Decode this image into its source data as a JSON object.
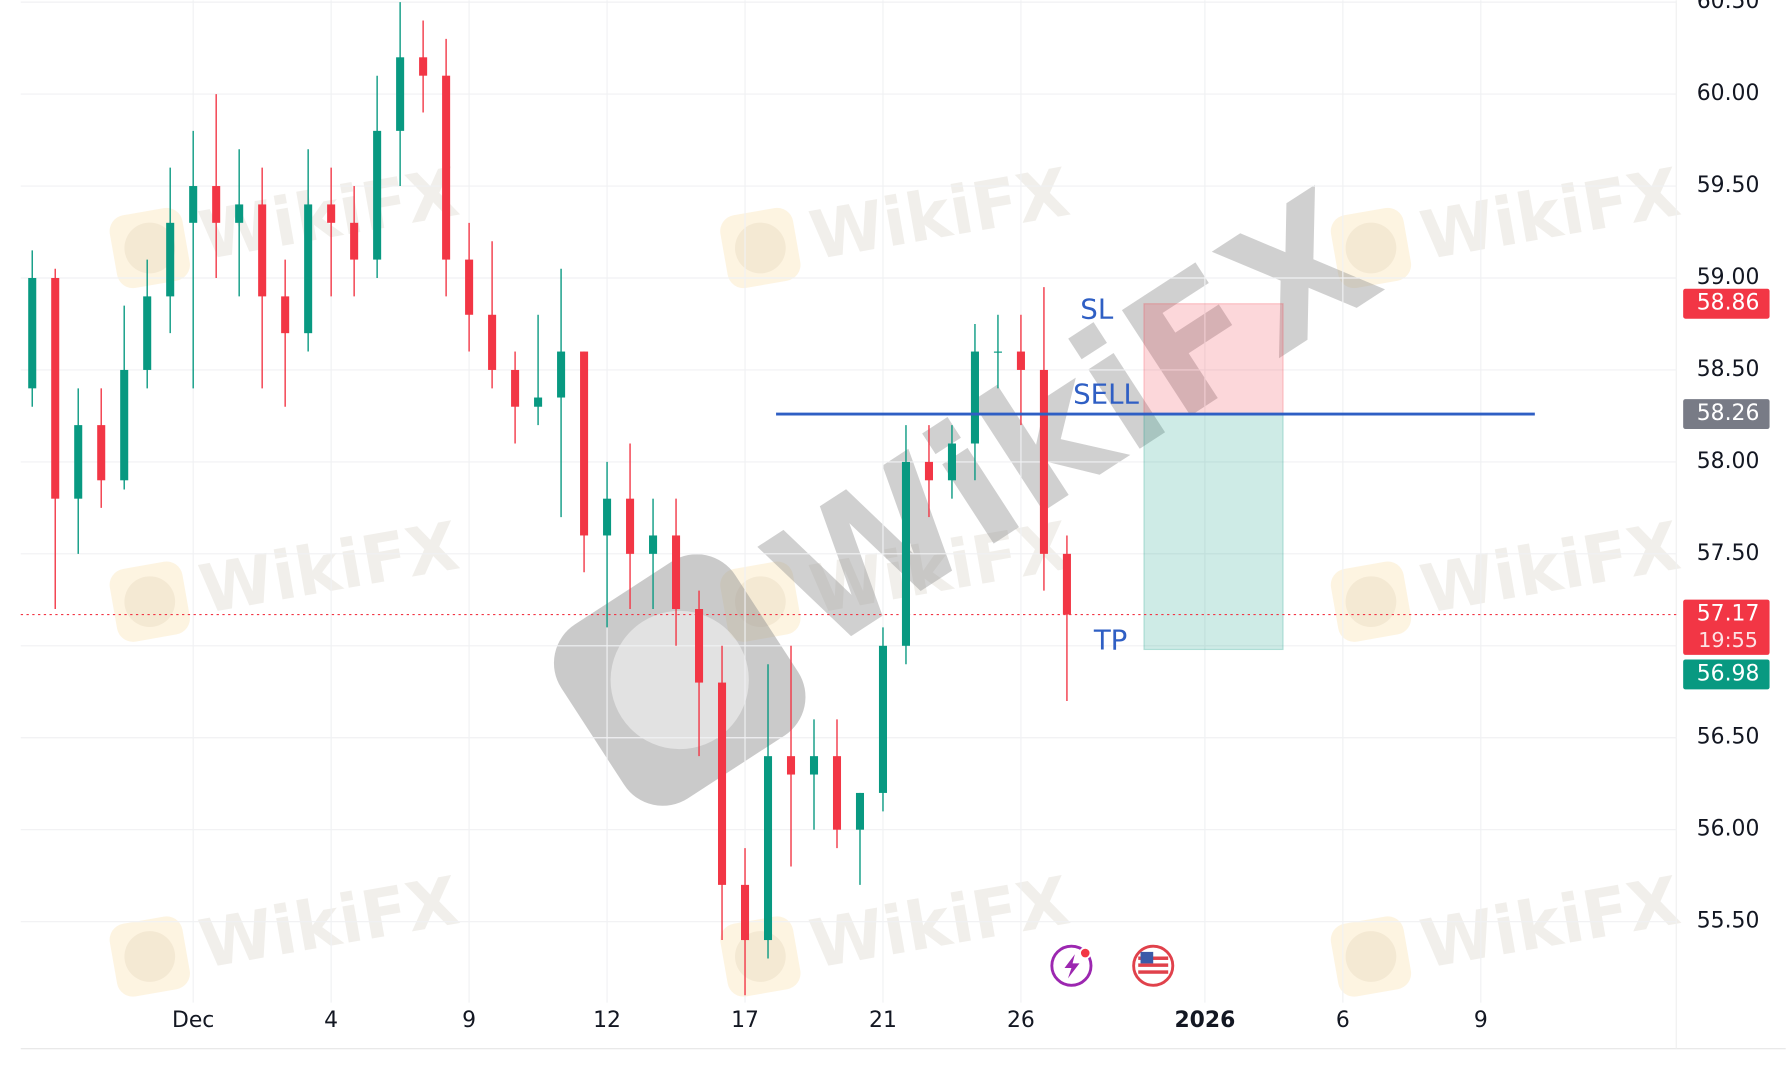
{
  "chart_data": {
    "type": "candlestick",
    "categories": [
      null,
      null,
      null,
      null,
      null,
      null,
      null,
      "Dec",
      null,
      null,
      null,
      null,
      null,
      "4",
      null,
      null,
      null,
      null,
      null,
      "9",
      null,
      null,
      null,
      null,
      null,
      "12",
      null,
      null,
      null,
      null,
      null,
      "17",
      null,
      null,
      null,
      null,
      null,
      "21",
      null,
      null,
      null,
      null,
      null,
      "26",
      null,
      null,
      null,
      null,
      null,
      null,
      null,
      "2026",
      null,
      null,
      null,
      null,
      null,
      "6",
      null,
      null,
      null,
      null,
      null,
      "9",
      null,
      null,
      null,
      null,
      null,
      null,
      null,
      null
    ],
    "open": [
      58.4,
      59.0,
      57.8,
      58.2,
      57.9,
      58.5,
      58.9,
      59.3,
      59.5,
      59.3,
      59.4,
      58.9,
      58.7,
      59.4,
      59.3,
      59.1,
      59.8,
      60.2,
      60.1,
      59.1,
      58.8,
      58.5,
      58.3,
      58.35,
      58.6,
      57.6,
      57.8,
      57.5,
      57.6,
      57.2,
      56.8,
      55.7,
      55.4,
      56.4,
      56.3,
      56.4,
      56.0,
      56.2,
      57.0,
      58.0,
      57.9,
      58.1,
      58.6,
      58.6,
      58.5,
      57.5,
      null,
      null,
      null,
      null,
      null,
      null,
      null,
      null,
      null,
      null,
      null,
      null,
      null,
      null,
      null,
      null,
      null,
      null,
      null,
      null,
      null,
      null,
      null,
      null,
      null,
      null
    ],
    "high": [
      59.15,
      59.05,
      58.4,
      58.4,
      58.85,
      59.1,
      59.6,
      59.8,
      60.0,
      59.7,
      59.6,
      59.1,
      59.7,
      59.6,
      59.5,
      60.1,
      60.5,
      60.4,
      60.3,
      59.3,
      59.2,
      58.6,
      58.8,
      59.05,
      58.6,
      58.0,
      58.1,
      57.8,
      57.8,
      57.3,
      57.0,
      55.9,
      56.9,
      57.0,
      56.6,
      56.6,
      56.2,
      57.1,
      58.2,
      58.2,
      58.2,
      58.75,
      58.8,
      58.8,
      58.95,
      57.6,
      null,
      null,
      null,
      null,
      null,
      null,
      null,
      null,
      null,
      null,
      null,
      null,
      null,
      null,
      null,
      null,
      null,
      null,
      null,
      null,
      null,
      null,
      null,
      null,
      null,
      null
    ],
    "low": [
      58.3,
      57.2,
      57.5,
      57.75,
      57.85,
      58.4,
      58.7,
      58.4,
      59.0,
      58.9,
      58.4,
      58.3,
      58.6,
      58.9,
      58.9,
      59.0,
      59.5,
      59.9,
      58.9,
      58.6,
      58.4,
      58.1,
      58.2,
      57.7,
      57.4,
      57.1,
      57.2,
      57.2,
      57.0,
      56.4,
      55.4,
      55.1,
      55.3,
      55.8,
      56.0,
      55.9,
      55.7,
      56.1,
      56.9,
      57.7,
      57.8,
      57.9,
      58.4,
      58.2,
      57.3,
      56.7,
      null,
      null,
      null,
      null,
      null,
      null,
      null,
      null,
      null,
      null,
      null,
      null,
      null,
      null,
      null,
      null,
      null,
      null,
      null,
      null,
      null,
      null,
      null,
      null,
      null,
      null
    ],
    "close": [
      59.0,
      57.8,
      58.2,
      57.9,
      58.5,
      58.9,
      59.3,
      59.5,
      59.3,
      59.4,
      58.9,
      58.7,
      59.4,
      59.3,
      59.1,
      59.8,
      60.2,
      60.1,
      59.1,
      58.8,
      58.5,
      58.3,
      58.35,
      58.6,
      57.6,
      57.8,
      57.5,
      57.6,
      57.2,
      56.8,
      55.7,
      55.4,
      56.4,
      56.3,
      56.4,
      56.0,
      56.2,
      57.0,
      58.0,
      57.9,
      58.1,
      58.6,
      58.6,
      58.5,
      57.5,
      57.17,
      null,
      null,
      null,
      null,
      null,
      null,
      null,
      null,
      null,
      null,
      null,
      null,
      null,
      null,
      null,
      null,
      null,
      null,
      null,
      null,
      null,
      null,
      null,
      null,
      null,
      null
    ],
    "up_color": "#089981",
    "down_color": "#f23645",
    "ylim": [
      55.06,
      60.51
    ],
    "yticks": [
      {
        "value": 55.5,
        "label": "55.50"
      },
      {
        "value": 56,
        "label": "56.00"
      },
      {
        "value": 56.5,
        "label": "56.50"
      },
      {
        "value": 57,
        "label": "57.00"
      },
      {
        "value": 57.5,
        "label": "57.50"
      },
      {
        "value": 58,
        "label": "58.00"
      },
      {
        "value": 58.5,
        "label": "58.50"
      },
      {
        "value": 59,
        "label": "59.00"
      },
      {
        "value": 59.5,
        "label": "59.50"
      },
      {
        "value": 60,
        "label": "60.00"
      },
      {
        "value": 60.5,
        "label": "60.50"
      }
    ],
    "grid": true,
    "position": {
      "stop_loss": 58.86,
      "entry": 58.26,
      "take_profit": 56.98,
      "sl_label": "SL",
      "entry_label": "SELL",
      "tp_label": "TP",
      "line_color": "#2f5fc4"
    },
    "last_price": 57.17,
    "countdown": "19:55",
    "watermark": "WikiFX"
  }
}
